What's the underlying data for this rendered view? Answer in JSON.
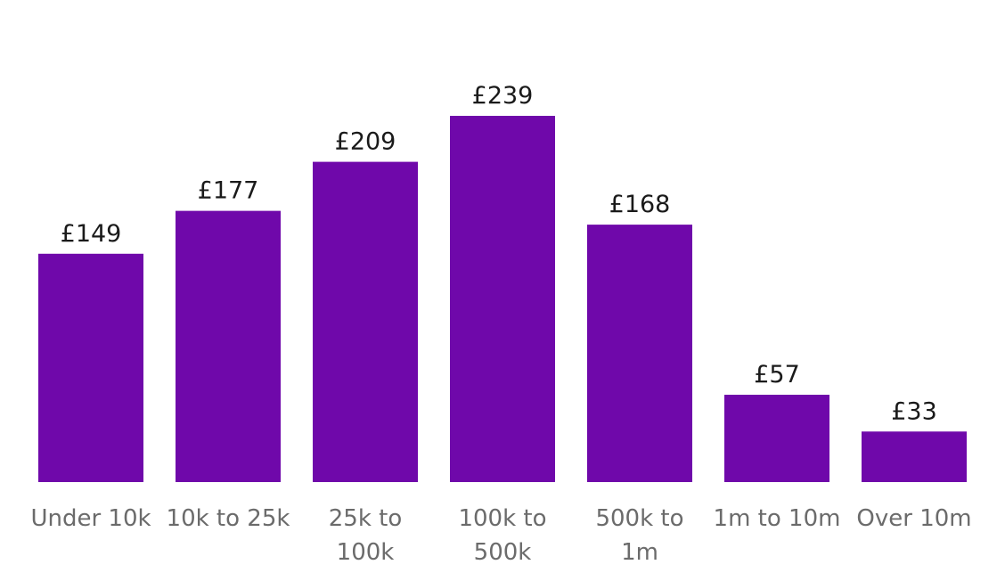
{
  "chart_data": {
    "type": "bar",
    "categories": [
      [
        "Under 10k"
      ],
      [
        "10k to 25k"
      ],
      [
        "25k to",
        "100k"
      ],
      [
        "100k to",
        "500k"
      ],
      [
        "500k to",
        "1m"
      ],
      [
        "1m to 10m"
      ],
      [
        "Over 10m"
      ]
    ],
    "values": [
      149,
      177,
      209,
      239,
      168,
      57,
      33
    ],
    "data_labels": [
      "£149",
      "£177",
      "£209",
      "£239",
      "£168",
      "£57",
      "£33"
    ],
    "title": "",
    "xlabel": "",
    "ylabel": "",
    "ylim": [
      0,
      239
    ],
    "grid": false,
    "legend": "none",
    "bar_color": "#6f08aa",
    "label_color": "#1a1a1a",
    "category_color": "#6b6b6b"
  }
}
